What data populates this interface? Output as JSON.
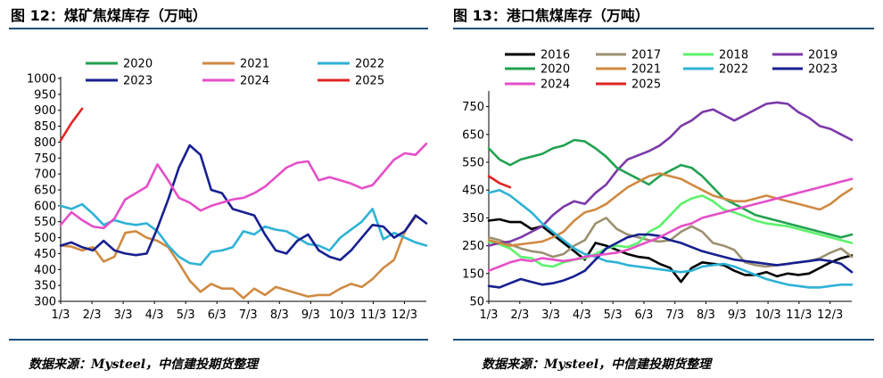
{
  "header": {
    "left_title": "图 12：煤矿焦煤库存（万吨）",
    "right_title": "图 13：港口焦煤库存（万吨）"
  },
  "footer": {
    "left_source": "数据来源：Mysteel，中信建投期货整理",
    "right_source": "数据来源：Mysteel，中信建投期货整理"
  },
  "chart_data": [
    {
      "type": "line",
      "title": "图 12：煤矿焦煤库存（万吨）",
      "x_ticks": [
        "1/3",
        "2/3",
        "3/3",
        "4/3",
        "5/3",
        "6/3",
        "7/3",
        "8/3",
        "9/3",
        "10/3",
        "11/3",
        "12/3"
      ],
      "xlim": [
        0,
        11.7
      ],
      "ylim": [
        300,
        1000
      ],
      "y_ticks": [
        300,
        350,
        400,
        450,
        500,
        550,
        600,
        650,
        700,
        750,
        800,
        850,
        900,
        950,
        1000
      ],
      "grid": false,
      "legend_position": "top",
      "legend_columns": 3,
      "series": [
        {
          "name": "2020",
          "color": "#22a150",
          "values": []
        },
        {
          "name": "2021",
          "color": "#d08a42",
          "values": [
            475,
            472,
            460,
            470,
            425,
            440,
            515,
            520,
            500,
            490,
            470,
            420,
            365,
            330,
            355,
            340,
            340,
            310,
            340,
            320,
            345,
            335,
            325,
            315,
            320,
            320,
            340,
            355,
            345,
            370,
            405,
            430,
            520,
            565
          ]
        },
        {
          "name": "2022",
          "color": "#2eb2d6",
          "values": [
            600,
            590,
            605,
            575,
            540,
            555,
            545,
            540,
            545,
            520,
            475,
            440,
            420,
            415,
            455,
            460,
            470,
            520,
            510,
            535,
            525,
            520,
            500,
            480,
            475,
            460,
            500,
            525,
            550,
            590,
            495,
            515,
            500,
            485,
            475
          ]
        },
        {
          "name": "2023",
          "color": "#17208f",
          "values": [
            475,
            485,
            470,
            460,
            490,
            460,
            450,
            445,
            450,
            530,
            620,
            720,
            790,
            760,
            650,
            640,
            590,
            580,
            570,
            510,
            460,
            450,
            490,
            510,
            460,
            440,
            430,
            460,
            500,
            540,
            535,
            500,
            520,
            570,
            545
          ]
        },
        {
          "name": "2024",
          "color": "#e54fc8",
          "values": [
            540,
            580,
            555,
            535,
            530,
            560,
            620,
            640,
            660,
            730,
            680,
            625,
            610,
            585,
            600,
            610,
            620,
            625,
            640,
            660,
            690,
            720,
            735,
            740,
            680,
            690,
            680,
            670,
            655,
            665,
            705,
            745,
            765,
            760,
            795
          ]
        },
        {
          "name": "2025",
          "color": "#e02424",
          "values": [
            805,
            860,
            905
          ]
        }
      ]
    },
    {
      "type": "line",
      "title": "图 13：港口焦煤库存（万吨）",
      "x_ticks": [
        "1/3",
        "2/3",
        "3/3",
        "4/3",
        "5/3",
        "6/3",
        "7/3",
        "8/3",
        "9/3",
        "10/3",
        "11/3",
        "12/3"
      ],
      "xlim": [
        0,
        11.7
      ],
      "ylim": [
        50,
        800
      ],
      "y_ticks": [
        50,
        150,
        250,
        350,
        450,
        550,
        650,
        750
      ],
      "grid": false,
      "legend_position": "top",
      "legend_columns": 4,
      "series": [
        {
          "name": "2016",
          "color": "#000000",
          "values": [
            340,
            345,
            335,
            335,
            310,
            320,
            290,
            260,
            230,
            200,
            260,
            250,
            235,
            220,
            210,
            205,
            185,
            170,
            120,
            170,
            190,
            185,
            180,
            160,
            145,
            145,
            155,
            140,
            150,
            145,
            150,
            170,
            190,
            205,
            215
          ]
        },
        {
          "name": "2017",
          "color": "#9c9070",
          "values": [
            280,
            270,
            255,
            240,
            230,
            225,
            210,
            220,
            250,
            270,
            330,
            350,
            310,
            290,
            280,
            270,
            265,
            270,
            300,
            320,
            300,
            260,
            250,
            235,
            190,
            180,
            175,
            180,
            185,
            190,
            195,
            205,
            225,
            240,
            210
          ]
        },
        {
          "name": "2018",
          "color": "#5cf26c",
          "values": [
            265,
            255,
            240,
            210,
            205,
            180,
            175,
            190,
            200,
            205,
            220,
            240,
            250,
            245,
            260,
            300,
            320,
            360,
            400,
            420,
            430,
            410,
            380,
            370,
            355,
            340,
            330,
            325,
            320,
            310,
            300,
            290,
            280,
            270,
            260
          ]
        },
        {
          "name": "2019",
          "color": "#7b3aa8",
          "values": [
            250,
            260,
            265,
            280,
            300,
            320,
            360,
            390,
            410,
            400,
            440,
            470,
            520,
            560,
            575,
            590,
            610,
            640,
            680,
            700,
            730,
            740,
            720,
            700,
            720,
            740,
            760,
            765,
            760,
            730,
            710,
            680,
            670,
            650,
            630
          ]
        },
        {
          "name": "2020",
          "color": "#22a150",
          "values": [
            600,
            560,
            540,
            560,
            570,
            580,
            600,
            610,
            630,
            625,
            600,
            570,
            530,
            510,
            490,
            470,
            500,
            520,
            540,
            530,
            500,
            460,
            420,
            400,
            380,
            360,
            350,
            340,
            330,
            320,
            310,
            300,
            290,
            280,
            290
          ]
        },
        {
          "name": "2021",
          "color": "#d08a42",
          "values": [
            270,
            260,
            250,
            255,
            260,
            265,
            280,
            300,
            340,
            370,
            380,
            400,
            430,
            460,
            480,
            500,
            510,
            500,
            490,
            470,
            450,
            430,
            420,
            410,
            410,
            420,
            430,
            420,
            410,
            400,
            390,
            380,
            400,
            430,
            455
          ]
        },
        {
          "name": "2022",
          "color": "#2eb2d6",
          "values": [
            440,
            450,
            430,
            400,
            370,
            330,
            300,
            270,
            240,
            220,
            210,
            195,
            190,
            180,
            175,
            170,
            165,
            160,
            155,
            160,
            175,
            180,
            185,
            175,
            160,
            145,
            130,
            120,
            110,
            105,
            100,
            100,
            105,
            110,
            110
          ]
        },
        {
          "name": "2023",
          "color": "#17208f",
          "values": [
            105,
            100,
            115,
            130,
            120,
            110,
            115,
            125,
            140,
            160,
            200,
            240,
            260,
            280,
            290,
            290,
            285,
            270,
            260,
            245,
            230,
            220,
            210,
            200,
            195,
            190,
            185,
            180,
            185,
            190,
            195,
            200,
            195,
            185,
            155
          ]
        },
        {
          "name": "2024",
          "color": "#e54fc8",
          "values": [
            160,
            175,
            190,
            200,
            195,
            205,
            200,
            195,
            200,
            210,
            215,
            220,
            225,
            235,
            250,
            265,
            280,
            300,
            320,
            330,
            350,
            360,
            370,
            380,
            390,
            400,
            410,
            420,
            430,
            440,
            450,
            460,
            470,
            480,
            490
          ]
        },
        {
          "name": "2025",
          "color": "#e02424",
          "values": [
            500,
            475,
            460
          ]
        }
      ]
    }
  ]
}
